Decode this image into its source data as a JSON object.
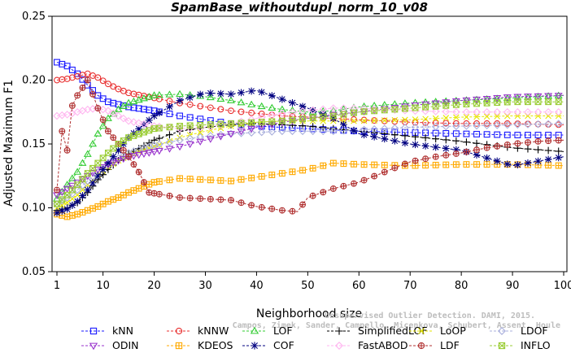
{
  "chart_data": {
    "type": "line",
    "title": "SpamBase_withoutdupl_norm_10_v08",
    "xlabel": "Neighborhood size",
    "ylabel": "Adjusted Maximum F1",
    "xlim": [
      1,
      100
    ],
    "ylim": [
      0.05,
      0.25
    ],
    "x_ticks": [
      1,
      10,
      20,
      30,
      40,
      50,
      60,
      70,
      80,
      90,
      100
    ],
    "y_ticks": [
      "0.05",
      "0.10",
      "0.15",
      "0.20",
      "0.25"
    ],
    "grid": false,
    "legend_position": "bottom",
    "watermark": [
      "Unsupervised Outlier Detection. DAMI, 2015.",
      "Campos, Zimek, Sander, Campello, Micenkova, Schubert, Assent, Houle"
    ],
    "series": [
      {
        "name": "kNN",
        "color": "#1a1aff",
        "marker": "square",
        "points": [
          [
            1,
            0.214
          ],
          [
            3,
            0.211
          ],
          [
            5,
            0.205
          ],
          [
            7,
            0.196
          ],
          [
            9,
            0.188
          ],
          [
            11,
            0.183
          ],
          [
            13,
            0.181
          ],
          [
            15,
            0.179
          ],
          [
            20,
            0.176
          ],
          [
            25,
            0.172
          ],
          [
            30,
            0.169
          ],
          [
            35,
            0.166
          ],
          [
            40,
            0.164
          ],
          [
            45,
            0.163
          ],
          [
            50,
            0.162
          ],
          [
            55,
            0.161
          ],
          [
            60,
            0.16
          ],
          [
            70,
            0.159
          ],
          [
            80,
            0.158
          ],
          [
            90,
            0.157
          ],
          [
            100,
            0.157
          ]
        ]
      },
      {
        "name": "kNNW",
        "color": "#e83030",
        "marker": "circle",
        "points": [
          [
            1,
            0.2
          ],
          [
            3,
            0.201
          ],
          [
            5,
            0.203
          ],
          [
            7,
            0.205
          ],
          [
            9,
            0.202
          ],
          [
            11,
            0.197
          ],
          [
            13,
            0.193
          ],
          [
            15,
            0.19
          ],
          [
            20,
            0.186
          ],
          [
            25,
            0.182
          ],
          [
            30,
            0.179
          ],
          [
            35,
            0.176
          ],
          [
            40,
            0.174
          ],
          [
            45,
            0.172
          ],
          [
            50,
            0.171
          ],
          [
            55,
            0.17
          ],
          [
            60,
            0.169
          ],
          [
            70,
            0.167
          ],
          [
            80,
            0.166
          ],
          [
            90,
            0.166
          ],
          [
            100,
            0.165
          ]
        ]
      },
      {
        "name": "LOF",
        "color": "#33cc33",
        "marker": "triangle",
        "points": [
          [
            1,
            0.107
          ],
          [
            3,
            0.118
          ],
          [
            5,
            0.128
          ],
          [
            7,
            0.142
          ],
          [
            9,
            0.158
          ],
          [
            11,
            0.17
          ],
          [
            13,
            0.177
          ],
          [
            15,
            0.182
          ],
          [
            20,
            0.188
          ],
          [
            25,
            0.189
          ],
          [
            30,
            0.187
          ],
          [
            35,
            0.184
          ],
          [
            40,
            0.18
          ],
          [
            45,
            0.177
          ],
          [
            50,
            0.175
          ],
          [
            55,
            0.176
          ],
          [
            60,
            0.179
          ],
          [
            70,
            0.182
          ],
          [
            80,
            0.184
          ],
          [
            90,
            0.186
          ],
          [
            100,
            0.188
          ]
        ]
      },
      {
        "name": "SimplifiedLOF",
        "color": "#000000",
        "marker": "plus",
        "points": [
          [
            1,
            0.098
          ],
          [
            3,
            0.1
          ],
          [
            5,
            0.104
          ],
          [
            7,
            0.112
          ],
          [
            9,
            0.122
          ],
          [
            11,
            0.13
          ],
          [
            13,
            0.137
          ],
          [
            15,
            0.142
          ],
          [
            20,
            0.153
          ],
          [
            25,
            0.16
          ],
          [
            30,
            0.163
          ],
          [
            35,
            0.165
          ],
          [
            40,
            0.166
          ],
          [
            45,
            0.165
          ],
          [
            50,
            0.164
          ],
          [
            55,
            0.162
          ],
          [
            60,
            0.16
          ],
          [
            70,
            0.156
          ],
          [
            80,
            0.152
          ],
          [
            90,
            0.147
          ],
          [
            100,
            0.144
          ]
        ]
      },
      {
        "name": "LoOP",
        "color": "#e6e600",
        "marker": "x",
        "points": [
          [
            1,
            0.1
          ],
          [
            3,
            0.104
          ],
          [
            5,
            0.11
          ],
          [
            7,
            0.118
          ],
          [
            9,
            0.126
          ],
          [
            11,
            0.132
          ],
          [
            13,
            0.137
          ],
          [
            15,
            0.141
          ],
          [
            20,
            0.148
          ],
          [
            25,
            0.155
          ],
          [
            30,
            0.16
          ],
          [
            35,
            0.164
          ],
          [
            40,
            0.167
          ],
          [
            45,
            0.168
          ],
          [
            50,
            0.168
          ],
          [
            55,
            0.168
          ],
          [
            60,
            0.168
          ],
          [
            70,
            0.169
          ],
          [
            80,
            0.171
          ],
          [
            90,
            0.172
          ],
          [
            100,
            0.172
          ]
        ]
      },
      {
        "name": "LDOF",
        "color": "#aab0dd",
        "marker": "diamond",
        "points": [
          [
            1,
            0.103
          ],
          [
            3,
            0.108
          ],
          [
            5,
            0.114
          ],
          [
            7,
            0.121
          ],
          [
            9,
            0.128
          ],
          [
            11,
            0.134
          ],
          [
            13,
            0.139
          ],
          [
            15,
            0.143
          ],
          [
            20,
            0.149
          ],
          [
            25,
            0.153
          ],
          [
            30,
            0.156
          ],
          [
            35,
            0.158
          ],
          [
            40,
            0.159
          ],
          [
            45,
            0.16
          ],
          [
            50,
            0.16
          ],
          [
            55,
            0.16
          ],
          [
            60,
            0.161
          ],
          [
            70,
            0.163
          ],
          [
            80,
            0.164
          ],
          [
            90,
            0.165
          ],
          [
            100,
            0.166
          ]
        ]
      },
      {
        "name": "ODIN",
        "color": "#9933cc",
        "marker": "triangle-down",
        "points": [
          [
            1,
            0.11
          ],
          [
            3,
            0.115
          ],
          [
            5,
            0.12
          ],
          [
            7,
            0.125
          ],
          [
            9,
            0.13
          ],
          [
            11,
            0.134
          ],
          [
            13,
            0.137
          ],
          [
            15,
            0.14
          ],
          [
            20,
            0.144
          ],
          [
            25,
            0.148
          ],
          [
            30,
            0.153
          ],
          [
            35,
            0.158
          ],
          [
            40,
            0.163
          ],
          [
            45,
            0.167
          ],
          [
            50,
            0.17
          ],
          [
            55,
            0.173
          ],
          [
            60,
            0.175
          ],
          [
            70,
            0.18
          ],
          [
            80,
            0.184
          ],
          [
            90,
            0.187
          ],
          [
            100,
            0.188
          ]
        ]
      },
      {
        "name": "KDEOS",
        "color": "#ffaa00",
        "marker": "boxsquare",
        "points": [
          [
            1,
            0.095
          ],
          [
            3,
            0.093
          ],
          [
            5,
            0.095
          ],
          [
            7,
            0.098
          ],
          [
            9,
            0.101
          ],
          [
            11,
            0.105
          ],
          [
            13,
            0.108
          ],
          [
            15,
            0.112
          ],
          [
            20,
            0.12
          ],
          [
            25,
            0.123
          ],
          [
            30,
            0.122
          ],
          [
            35,
            0.121
          ],
          [
            40,
            0.124
          ],
          [
            45,
            0.127
          ],
          [
            50,
            0.13
          ],
          [
            55,
            0.135
          ],
          [
            60,
            0.134
          ],
          [
            70,
            0.133
          ],
          [
            80,
            0.134
          ],
          [
            90,
            0.134
          ],
          [
            100,
            0.133
          ]
        ]
      },
      {
        "name": "COF",
        "color": "#000080",
        "marker": "star",
        "points": [
          [
            1,
            0.096
          ],
          [
            3,
            0.099
          ],
          [
            5,
            0.105
          ],
          [
            7,
            0.114
          ],
          [
            9,
            0.125
          ],
          [
            11,
            0.135
          ],
          [
            13,
            0.145
          ],
          [
            15,
            0.155
          ],
          [
            20,
            0.172
          ],
          [
            25,
            0.184
          ],
          [
            30,
            0.19
          ],
          [
            35,
            0.189
          ],
          [
            40,
            0.192
          ],
          [
            45,
            0.185
          ],
          [
            50,
            0.178
          ],
          [
            55,
            0.17
          ],
          [
            60,
            0.158
          ],
          [
            70,
            0.15
          ],
          [
            80,
            0.145
          ],
          [
            90,
            0.133
          ],
          [
            100,
            0.14
          ]
        ]
      },
      {
        "name": "FastABOD",
        "color": "#ffb6f0",
        "marker": "diamond",
        "points": [
          [
            1,
            0.172
          ],
          [
            3,
            0.173
          ],
          [
            5,
            0.175
          ],
          [
            7,
            0.177
          ],
          [
            9,
            0.178
          ],
          [
            11,
            0.176
          ],
          [
            13,
            0.172
          ],
          [
            15,
            0.168
          ],
          [
            20,
            0.164
          ],
          [
            25,
            0.162
          ],
          [
            30,
            0.163
          ],
          [
            35,
            0.166
          ],
          [
            40,
            0.17
          ],
          [
            45,
            0.174
          ],
          [
            50,
            0.176
          ],
          [
            55,
            0.178
          ],
          [
            60,
            0.178
          ],
          [
            70,
            0.176
          ],
          [
            80,
            0.175
          ],
          [
            90,
            0.175
          ],
          [
            100,
            0.175
          ]
        ]
      },
      {
        "name": "LDF",
        "color": "#b03030",
        "marker": "circle-plus",
        "points": [
          [
            1,
            0.114
          ],
          [
            2,
            0.16
          ],
          [
            3,
            0.145
          ],
          [
            4,
            0.18
          ],
          [
            5,
            0.188
          ],
          [
            7,
            0.2
          ],
          [
            9,
            0.178
          ],
          [
            11,
            0.16
          ],
          [
            13,
            0.15
          ],
          [
            15,
            0.14
          ],
          [
            17,
            0.128
          ],
          [
            19,
            0.112
          ],
          [
            22,
            0.11
          ],
          [
            25,
            0.108
          ],
          [
            30,
            0.107
          ],
          [
            35,
            0.106
          ],
          [
            40,
            0.101
          ],
          [
            45,
            0.098
          ],
          [
            48,
            0.097
          ],
          [
            50,
            0.108
          ],
          [
            55,
            0.115
          ],
          [
            60,
            0.12
          ],
          [
            65,
            0.128
          ],
          [
            70,
            0.136
          ],
          [
            75,
            0.14
          ],
          [
            80,
            0.143
          ],
          [
            85,
            0.147
          ],
          [
            90,
            0.15
          ],
          [
            95,
            0.152
          ],
          [
            100,
            0.153
          ]
        ]
      },
      {
        "name": "INFLO",
        "color": "#99cc33",
        "marker": "boxx",
        "points": [
          [
            1,
            0.103
          ],
          [
            3,
            0.11
          ],
          [
            5,
            0.118
          ],
          [
            7,
            0.127
          ],
          [
            9,
            0.135
          ],
          [
            11,
            0.143
          ],
          [
            13,
            0.15
          ],
          [
            15,
            0.155
          ],
          [
            20,
            0.162
          ],
          [
            25,
            0.164
          ],
          [
            30,
            0.165
          ],
          [
            35,
            0.166
          ],
          [
            40,
            0.167
          ],
          [
            45,
            0.168
          ],
          [
            50,
            0.17
          ],
          [
            55,
            0.172
          ],
          [
            60,
            0.175
          ],
          [
            70,
            0.178
          ],
          [
            80,
            0.181
          ],
          [
            90,
            0.183
          ],
          [
            100,
            0.183
          ]
        ]
      }
    ]
  }
}
